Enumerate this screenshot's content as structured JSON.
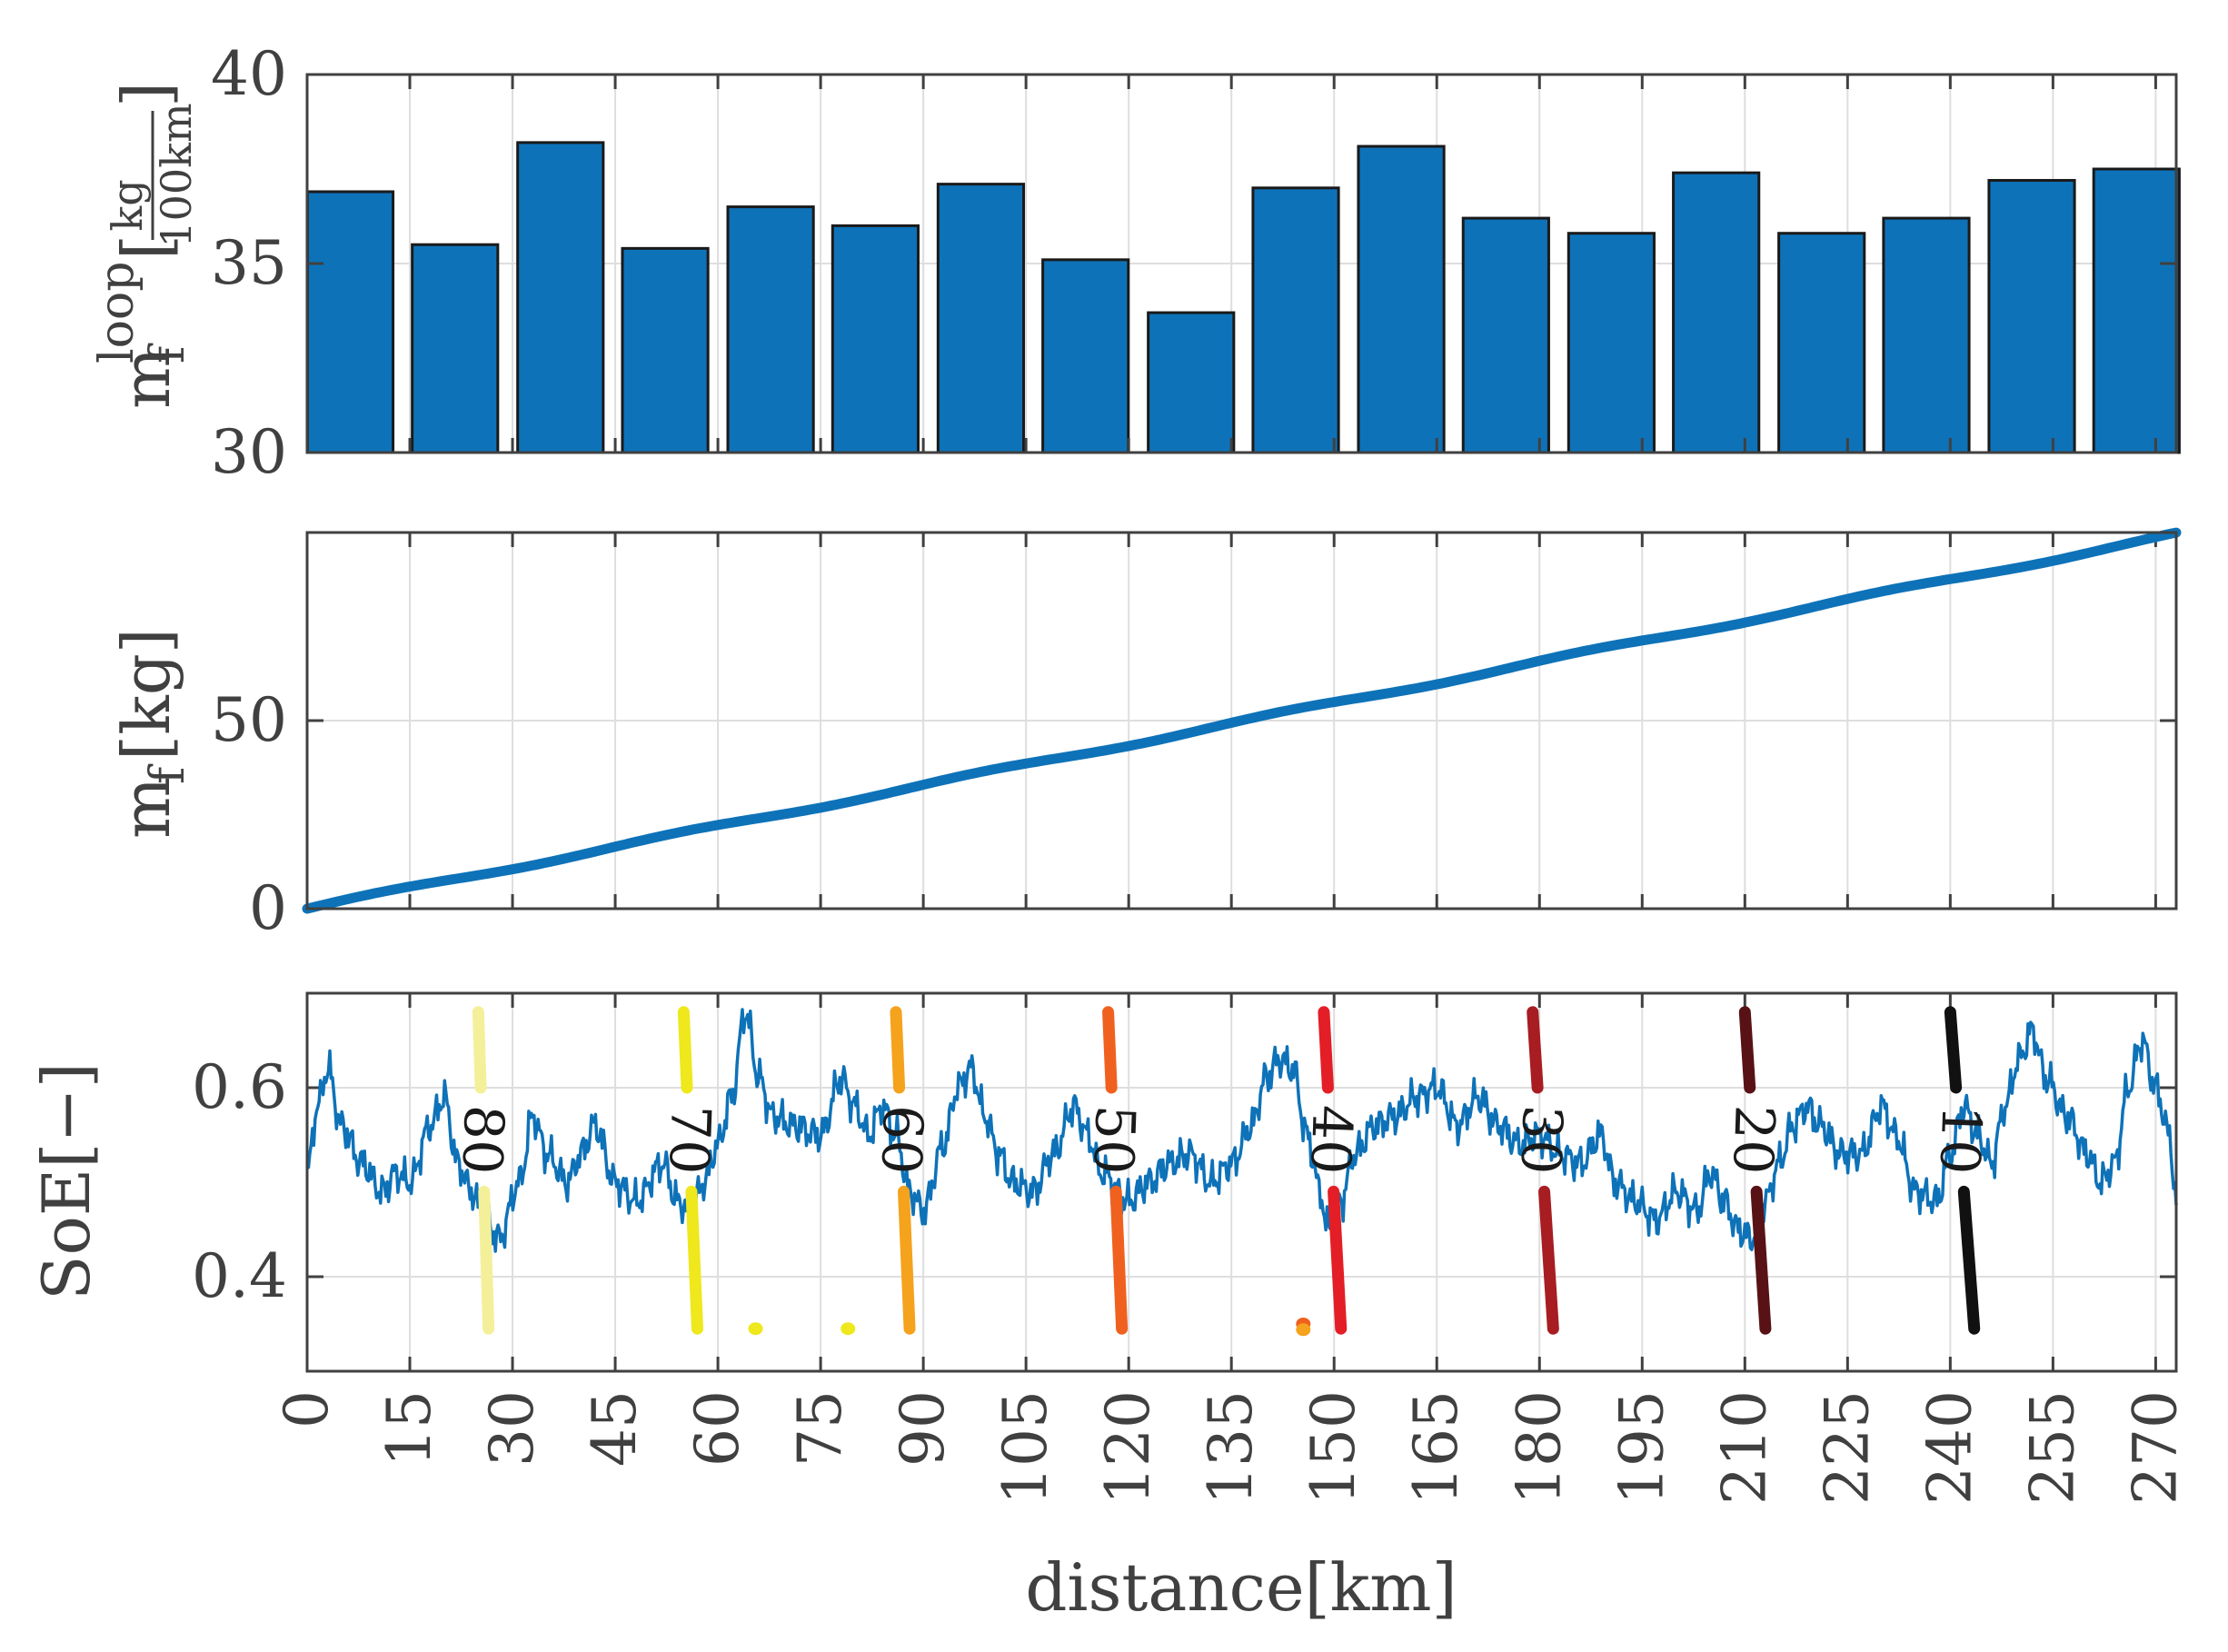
{
  "chart_data": [
    {
      "type": "bar",
      "panel": "top",
      "ylabel_base": "m",
      "ylabel_sub": "f",
      "ylabel_sup": "loop",
      "ylabel_unit_num": "kg",
      "ylabel_unit_den": "100km",
      "ylim": [
        30,
        40
      ],
      "yticks": [
        "30",
        "35",
        "40"
      ],
      "x_range": [
        0,
        273
      ],
      "bar_width_km": 12.5,
      "bar_centers_km": [
        6.3,
        21.6,
        37.0,
        52.3,
        67.7,
        83.0,
        98.4,
        113.7,
        129.1,
        144.4,
        159.8,
        175.1,
        190.5,
        205.8,
        221.2,
        236.5,
        251.9,
        267.2
      ],
      "values": [
        36.9,
        35.5,
        38.2,
        35.4,
        36.5,
        36.0,
        37.1,
        35.1,
        33.7,
        37.0,
        38.1,
        36.2,
        35.8,
        37.4,
        35.8,
        36.2,
        37.2,
        37.5
      ],
      "bar_color": "#0e72b8",
      "grid": true
    },
    {
      "type": "line",
      "panel": "middle",
      "ylabel_base": "m",
      "ylabel_sub": "f",
      "ylabel_unit": "[kg]",
      "ylim": [
        0,
        100
      ],
      "yticks": [
        "0",
        "50"
      ],
      "x": [
        0,
        273
      ],
      "y": [
        0,
        99.5
      ],
      "line_color": "#0e72b8",
      "grid": true
    },
    {
      "type": "line",
      "panel": "bottom",
      "ylabel": "SoE[−]",
      "ylim": [
        0.3,
        0.7
      ],
      "yticks": [
        "0.4",
        "0.6"
      ],
      "xlabel": "distance[km]",
      "xticks": [
        "0",
        "15",
        "30",
        "45",
        "60",
        "75",
        "90",
        "105",
        "120",
        "135",
        "150",
        "165",
        "180",
        "195",
        "210",
        "225",
        "240",
        "255",
        "270"
      ],
      "line_color": "#0e72b8",
      "soe_knots": [
        [
          0,
          0.51
        ],
        [
          1.5,
          0.58
        ],
        [
          3,
          0.62
        ],
        [
          5,
          0.56
        ],
        [
          8,
          0.52
        ],
        [
          11,
          0.49
        ],
        [
          13,
          0.51
        ],
        [
          15,
          0.5
        ],
        [
          18,
          0.56
        ],
        [
          20,
          0.59
        ],
        [
          22,
          0.52
        ],
        [
          24,
          0.49
        ],
        [
          26,
          0.46
        ],
        [
          28,
          0.44
        ],
        [
          31,
          0.5
        ],
        [
          33,
          0.57
        ],
        [
          35,
          0.53
        ],
        [
          38,
          0.5
        ],
        [
          40,
          0.53
        ],
        [
          42,
          0.56
        ],
        [
          45,
          0.5
        ],
        [
          48,
          0.48
        ],
        [
          52,
          0.52
        ],
        [
          54,
          0.48
        ],
        [
          56,
          0.47
        ],
        [
          58,
          0.5
        ],
        [
          60,
          0.54
        ],
        [
          62,
          0.59
        ],
        [
          64,
          0.68
        ],
        [
          66,
          0.61
        ],
        [
          68,
          0.57
        ],
        [
          71,
          0.56
        ],
        [
          75,
          0.55
        ],
        [
          78,
          0.61
        ],
        [
          80,
          0.58
        ],
        [
          82,
          0.55
        ],
        [
          84,
          0.58
        ],
        [
          86,
          0.55
        ],
        [
          88,
          0.49
        ],
        [
          90,
          0.47
        ],
        [
          93,
          0.54
        ],
        [
          95,
          0.6
        ],
        [
          97,
          0.62
        ],
        [
          99,
          0.57
        ],
        [
          101,
          0.53
        ],
        [
          103,
          0.5
        ],
        [
          106,
          0.49
        ],
        [
          109,
          0.53
        ],
        [
          112,
          0.58
        ],
        [
          114,
          0.55
        ],
        [
          116,
          0.51
        ],
        [
          120,
          0.48
        ],
        [
          123,
          0.5
        ],
        [
          126,
          0.52
        ],
        [
          129,
          0.53
        ],
        [
          132,
          0.5
        ],
        [
          135,
          0.52
        ],
        [
          138,
          0.56
        ],
        [
          140,
          0.61
        ],
        [
          142,
          0.63
        ],
        [
          144,
          0.62
        ],
        [
          146,
          0.55
        ],
        [
          148,
          0.49
        ],
        [
          149,
          0.45
        ],
        [
          151,
          0.48
        ],
        [
          153,
          0.53
        ],
        [
          156,
          0.56
        ],
        [
          159,
          0.57
        ],
        [
          162,
          0.59
        ],
        [
          165,
          0.6
        ],
        [
          168,
          0.56
        ],
        [
          171,
          0.59
        ],
        [
          174,
          0.56
        ],
        [
          177,
          0.54
        ],
        [
          180,
          0.55
        ],
        [
          183,
          0.53
        ],
        [
          186,
          0.52
        ],
        [
          189,
          0.55
        ],
        [
          191,
          0.5
        ],
        [
          194,
          0.48
        ],
        [
          197,
          0.46
        ],
        [
          200,
          0.49
        ],
        [
          203,
          0.47
        ],
        [
          205,
          0.51
        ],
        [
          207,
          0.48
        ],
        [
          209,
          0.45
        ],
        [
          211,
          0.44
        ],
        [
          213,
          0.48
        ],
        [
          215,
          0.52
        ],
        [
          217,
          0.56
        ],
        [
          219,
          0.58
        ],
        [
          221,
          0.56
        ],
        [
          224,
          0.53
        ],
        [
          227,
          0.53
        ],
        [
          230,
          0.58
        ],
        [
          232,
          0.55
        ],
        [
          235,
          0.49
        ],
        [
          238,
          0.48
        ],
        [
          240,
          0.53
        ],
        [
          242,
          0.58
        ],
        [
          244,
          0.55
        ],
        [
          246,
          0.52
        ],
        [
          248,
          0.58
        ],
        [
          250,
          0.63
        ],
        [
          252,
          0.66
        ],
        [
          254,
          0.61
        ],
        [
          257,
          0.57
        ],
        [
          260,
          0.53
        ],
        [
          262,
          0.5
        ],
        [
          264,
          0.52
        ],
        [
          266,
          0.6
        ],
        [
          268,
          0.65
        ],
        [
          270,
          0.6
        ],
        [
          272,
          0.55
        ],
        [
          273,
          0.48
        ]
      ],
      "contours": [
        {
          "label": "80",
          "color": "#f4f09a",
          "top": [
            25.0,
            0.68
          ],
          "bottom": [
            26.5,
            0.345
          ]
        },
        {
          "label": "70",
          "color": "#eee81c",
          "top": [
            55.0,
            0.68
          ],
          "bottom": [
            57.0,
            0.345
          ]
        },
        {
          "label": "60",
          "color": "#f5a21d",
          "top": [
            86.0,
            0.68
          ],
          "bottom": [
            88.0,
            0.345
          ]
        },
        {
          "label": "50",
          "color": "#f0611f",
          "top": [
            117.0,
            0.68
          ],
          "bottom": [
            119.0,
            0.345
          ]
        },
        {
          "label": "40",
          "color": "#e41e26",
          "top": [
            148.5,
            0.68
          ],
          "bottom": [
            151.0,
            0.345
          ]
        },
        {
          "label": "30",
          "color": "#a71d22",
          "top": [
            179.0,
            0.68
          ],
          "bottom": [
            182.0,
            0.345
          ]
        },
        {
          "label": "20",
          "color": "#581215",
          "top": [
            210.0,
            0.68
          ],
          "bottom": [
            213.0,
            0.345
          ]
        },
        {
          "label": "10",
          "color": "#111111",
          "top": [
            240.0,
            0.68
          ],
          "bottom": [
            243.5,
            0.345
          ]
        }
      ],
      "contour_blobs": [
        {
          "x": 65.5,
          "y": 0.345,
          "color": "#eee81c"
        },
        {
          "x": 79.0,
          "y": 0.345,
          "color": "#eee81c"
        },
        {
          "x": 145.5,
          "y": 0.35,
          "color": "#f0611f"
        },
        {
          "x": 145.5,
          "y": 0.344,
          "color": "#f5a21d"
        }
      ],
      "grid": true
    }
  ]
}
